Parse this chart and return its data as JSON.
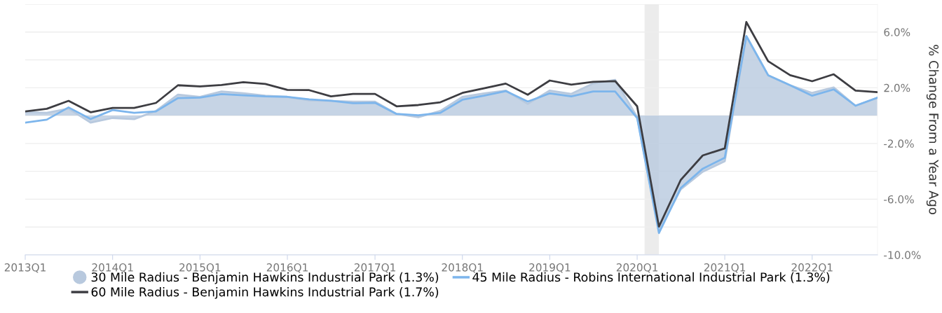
{
  "chart_data": {
    "type": "line",
    "ylabel": "% Change From a Year Ago",
    "x": [
      "2013-01",
      "2013-04",
      "2013-07",
      "2013-10",
      "2014-01",
      "2014-04",
      "2014-07",
      "2014-10",
      "2015-01",
      "2015-04",
      "2015-07",
      "2015-10",
      "2016-01",
      "2016-04",
      "2016-07",
      "2016-10",
      "2017-01",
      "2017-04",
      "2017-07",
      "2017-10",
      "2018-01",
      "2018-04",
      "2018-07",
      "2018-10",
      "2019-01",
      "2019-04",
      "2019-07",
      "2019-10",
      "2020-01",
      "2020-04",
      "2020-07",
      "2020-10",
      "2021-01",
      "2021-04",
      "2021-07",
      "2021-10",
      "2022-01",
      "2022-04",
      "2022-07",
      "2022-10"
    ],
    "series": [
      {
        "name": "30 Mile Radius - Benjamin Hawkins Industrial Park (1.3%)",
        "type": "area",
        "color": "#b8c9de",
        "values": [
          0.25,
          0.2,
          0.5,
          -0.5,
          -0.17,
          -0.25,
          0.34,
          1.51,
          1.34,
          1.73,
          1.61,
          1.43,
          1.34,
          1.09,
          1.06,
          1.01,
          1.0,
          0.12,
          -0.12,
          0.34,
          1.34,
          1.6,
          1.8,
          0.84,
          1.8,
          1.56,
          2.3,
          2.57,
          -0.1,
          -8.3,
          -5.29,
          -4.03,
          -3.27,
          5.71,
          2.9,
          2.18,
          1.63,
          2.02,
          0.71,
          1.29
        ]
      },
      {
        "name": "45 Mile Radius - Robins International Industrial Park (1.3%)",
        "color": "#7cb5ec",
        "values": [
          -0.5,
          -0.29,
          0.59,
          -0.25,
          0.4,
          0.2,
          0.3,
          1.26,
          1.29,
          1.55,
          1.46,
          1.38,
          1.35,
          1.17,
          1.07,
          0.89,
          0.92,
          0.12,
          0.02,
          0.2,
          1.14,
          1.43,
          1.76,
          1.01,
          1.6,
          1.38,
          1.73,
          1.73,
          -0.17,
          -8.43,
          -5.2,
          -3.81,
          -3.02,
          5.71,
          2.9,
          2.18,
          1.43,
          1.88,
          0.71,
          1.29
        ]
      },
      {
        "name": "60 Mile Radius - Benjamin Hawkins Industrial Park (1.7%)",
        "color": "#3d3d42",
        "values": [
          0.3,
          0.49,
          1.06,
          0.24,
          0.55,
          0.55,
          0.91,
          2.18,
          2.1,
          2.2,
          2.4,
          2.27,
          1.85,
          1.83,
          1.38,
          1.56,
          1.56,
          0.67,
          0.76,
          0.96,
          1.63,
          1.96,
          2.3,
          1.5,
          2.52,
          2.22,
          2.43,
          2.48,
          0.67,
          -7.97,
          -4.62,
          -2.86,
          -2.35,
          6.72,
          3.91,
          2.9,
          2.47,
          2.97,
          1.8,
          1.68
        ]
      }
    ],
    "xlim": [
      "2013-01",
      "2022-10"
    ],
    "xticks": [
      {
        "value": "2013-01",
        "label": "2013Q1"
      },
      {
        "value": "2014-01",
        "label": "2014Q1"
      },
      {
        "value": "2015-01",
        "label": "2015Q1"
      },
      {
        "value": "2016-01",
        "label": "2016Q1"
      },
      {
        "value": "2017-01",
        "label": "2017Q1"
      },
      {
        "value": "2018-01",
        "label": "2018Q1"
      },
      {
        "value": "2019-01",
        "label": "2019Q1"
      },
      {
        "value": "2020-01",
        "label": "2020Q1"
      },
      {
        "value": "2021-01",
        "label": "2021Q1"
      },
      {
        "value": "2022-01",
        "label": "2022Q1"
      }
    ],
    "ylim": [
      -10,
      8
    ],
    "yticks": [
      {
        "value": -10,
        "label": "-10.0%"
      },
      {
        "value": -8,
        "label": null
      },
      {
        "value": -6,
        "label": "-6.0%"
      },
      {
        "value": -4,
        "label": null
      },
      {
        "value": -2,
        "label": "-2.0%"
      },
      {
        "value": 0,
        "label": null
      },
      {
        "value": 2,
        "label": "2.0%"
      },
      {
        "value": 4,
        "label": null
      },
      {
        "value": 6,
        "label": "6.0%"
      },
      {
        "value": 8,
        "label": null
      }
    ],
    "bands": [
      {
        "axis": "x",
        "from": "2020-02",
        "to": "2020-04",
        "color": "#ececec"
      }
    ],
    "grid": "y",
    "legend": "bottom",
    "marker": "none",
    "line_style": "solid"
  }
}
